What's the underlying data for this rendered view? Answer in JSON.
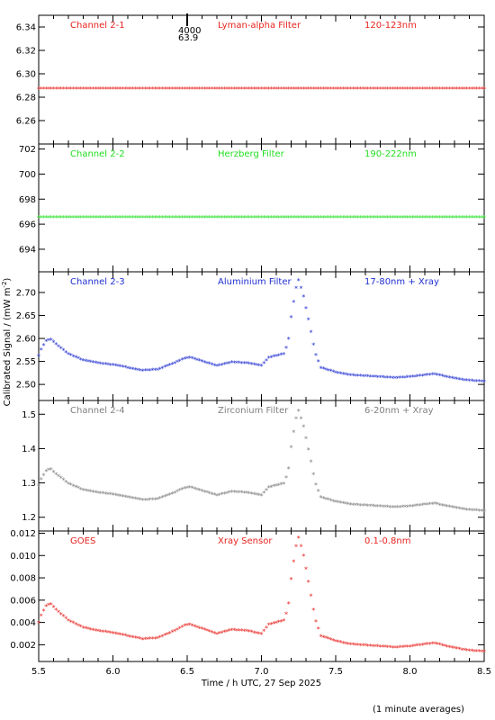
{
  "chart_data": {
    "type": "scatter",
    "xlabel": "Time / h UTC, 27 Sep 2025",
    "ylabel": "Calibrated Signal / (mW m",
    "ylabel_sup": "-2",
    "ylabel_end": ")",
    "xlim": [
      5.5,
      8.5
    ],
    "xticks": [
      "5.5",
      "6.0",
      "6.5",
      "7.0",
      "7.5",
      "8.0",
      "8.5"
    ],
    "footnote": "(1 minute averages)",
    "marker": "*",
    "panels": [
      {
        "channel": "Channel 2-1",
        "filter": "Lyman-alpha Filter",
        "band": "120-123nm",
        "color": "#e8231f",
        "ylim": [
          6.24,
          6.35
        ],
        "yticks": [
          "6.26",
          "6.28",
          "6.30",
          "6.32",
          "6.34"
        ],
        "flat_value": 6.287,
        "annotation": {
          "x": 6.5,
          "top": "4000",
          "bottom": "63.9"
        }
      },
      {
        "channel": "Channel 2-2",
        "filter": "Herzberg Filter",
        "band": "190-222nm",
        "color": "#22e022",
        "ylim": [
          692.2,
          702.4
        ],
        "yticks": [
          "694",
          "696",
          "698",
          "700",
          "702"
        ],
        "flat_value": 696.5
      },
      {
        "channel": "Channel 2-3",
        "filter": "Aluminium Filter",
        "band": "17-80nm + Xray",
        "color": "#1f2fd0",
        "ylim": [
          2.465,
          2.745
        ],
        "yticks": [
          "2.50",
          "2.55",
          "2.60",
          "2.65",
          "2.70"
        ],
        "profile": {
          "base": 2.545,
          "scale": 0.2
        }
      },
      {
        "channel": "Channel 2-4",
        "filter": "Zirconium Filter",
        "band": "6-20nm + Xray",
        "color": "#808080",
        "ylim": [
          1.16,
          1.54
        ],
        "yticks": [
          "1.2",
          "1.3",
          "1.4",
          "1.5"
        ],
        "profile": {
          "base": 1.27,
          "scale": 0.265
        }
      },
      {
        "channel": "GOES",
        "filter": "Xray Sensor",
        "band": "0.1-0.8nm",
        "color": "#e8231f",
        "ylim": [
          0.0005,
          0.0122
        ],
        "yticks": [
          "0.002",
          "0.004",
          "0.006",
          "0.008",
          "0.010",
          "0.012"
        ],
        "profile": {
          "base": 0.0032,
          "scale": 0.0093
        }
      }
    ],
    "profile_shape": {
      "x": [
        5.5,
        5.52,
        5.55,
        5.58,
        5.62,
        5.7,
        5.8,
        5.9,
        6.0,
        6.1,
        6.2,
        6.3,
        6.4,
        6.48,
        6.52,
        6.6,
        6.7,
        6.8,
        6.9,
        7.0,
        7.05,
        7.1,
        7.15,
        7.18,
        7.2,
        7.23,
        7.25,
        7.28,
        7.32,
        7.36,
        7.4,
        7.5,
        7.6,
        7.7,
        7.8,
        7.9,
        8.0,
        8.1,
        8.17,
        8.25,
        8.35,
        8.4,
        8.5
      ],
      "v": [
        0.08,
        0.16,
        0.24,
        0.26,
        0.2,
        0.1,
        0.03,
        0.0,
        -0.02,
        -0.05,
        -0.08,
        -0.07,
        -0.01,
        0.05,
        0.06,
        0.02,
        -0.03,
        0.01,
        0.0,
        -0.03,
        0.06,
        0.08,
        0.1,
        0.22,
        0.5,
        0.8,
        0.9,
        0.75,
        0.45,
        0.12,
        -0.05,
        -0.1,
        -0.13,
        -0.14,
        -0.15,
        -0.16,
        -0.15,
        -0.13,
        -0.12,
        -0.15,
        -0.18,
        -0.19,
        -0.2
      ]
    }
  }
}
